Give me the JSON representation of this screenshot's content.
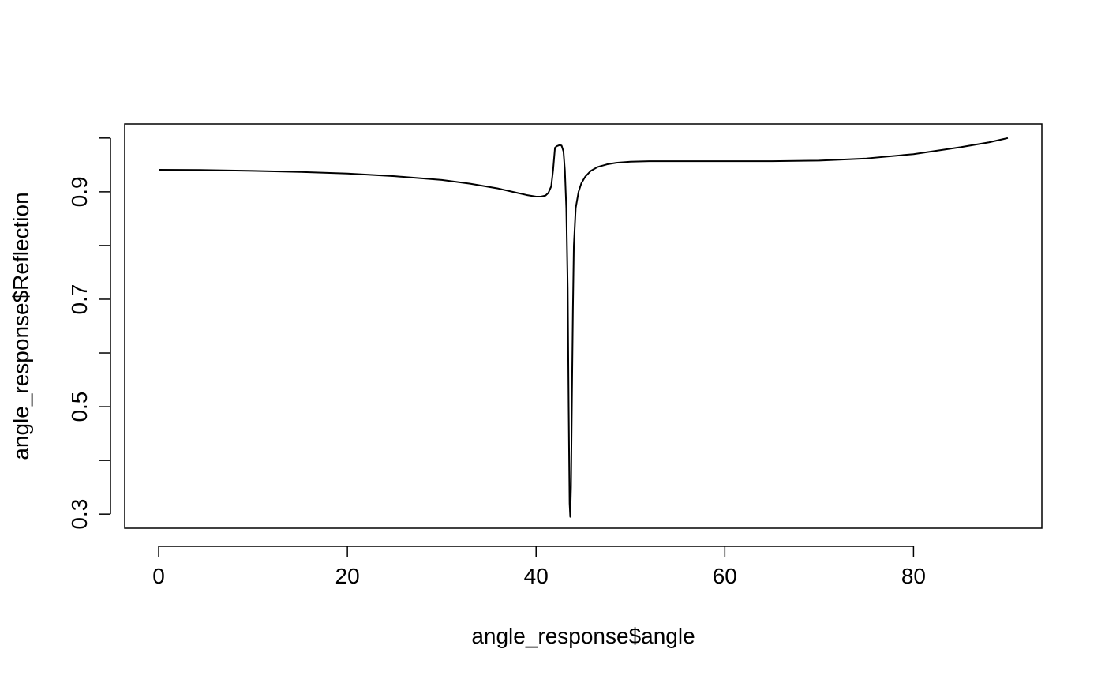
{
  "chart_data": {
    "type": "line",
    "title": "",
    "xlabel": "angle_response$angle",
    "ylabel": "angle_response$Reflection",
    "xlim": [
      -3.6,
      93.6
    ],
    "ylim": [
      0.2738,
      1.0262
    ],
    "xticks": [
      0,
      20,
      40,
      60,
      80
    ],
    "yticks": [
      0.3,
      0.4,
      0.5,
      0.6,
      0.7,
      0.8,
      0.9,
      1.0
    ],
    "ytick_labels": [
      "0.3",
      "",
      "0.5",
      "",
      "0.7",
      "",
      "0.9",
      ""
    ],
    "grid": false,
    "legend": "none",
    "line_color": "#000000",
    "series": [
      {
        "x": [
          0,
          5,
          10,
          15,
          20,
          25,
          30,
          33,
          36,
          38,
          39,
          40,
          40.5,
          41,
          41.3,
          41.6,
          41.8,
          42.0,
          42.2,
          42.5,
          42.7,
          42.9,
          43.05,
          43.2,
          43.35,
          43.45,
          43.55,
          43.62,
          43.7,
          43.8,
          43.9,
          44.0,
          44.2,
          44.5,
          44.8,
          45.2,
          45.8,
          46.5,
          47.5,
          48.5,
          50,
          52,
          55,
          60,
          65,
          70,
          75,
          80,
          85,
          88,
          90
        ],
        "y": [
          0.941,
          0.9405,
          0.939,
          0.937,
          0.934,
          0.929,
          0.922,
          0.915,
          0.906,
          0.898,
          0.894,
          0.891,
          0.891,
          0.893,
          0.898,
          0.91,
          0.94,
          0.982,
          0.985,
          0.987,
          0.986,
          0.975,
          0.94,
          0.87,
          0.72,
          0.5,
          0.32,
          0.295,
          0.35,
          0.52,
          0.68,
          0.8,
          0.87,
          0.9,
          0.916,
          0.928,
          0.939,
          0.946,
          0.951,
          0.954,
          0.956,
          0.957,
          0.957,
          0.957,
          0.957,
          0.958,
          0.962,
          0.97,
          0.983,
          0.992,
          1.0
        ]
      }
    ]
  }
}
